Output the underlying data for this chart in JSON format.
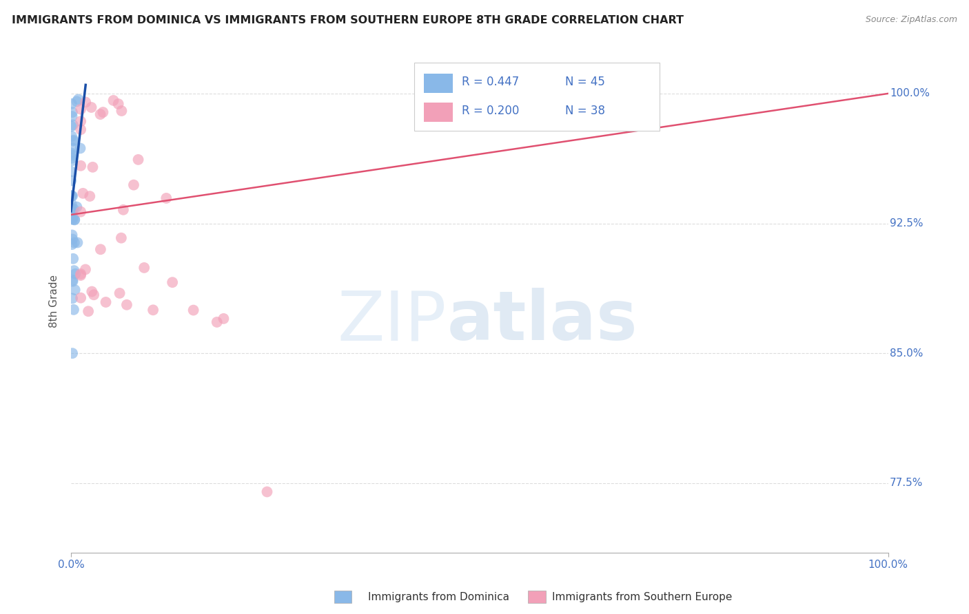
{
  "title": "IMMIGRANTS FROM DOMINICA VS IMMIGRANTS FROM SOUTHERN EUROPE 8TH GRADE CORRELATION CHART",
  "source_text": "Source: ZipAtlas.com",
  "ylabel": "8th Grade",
  "xlim": [
    0.0,
    1.0
  ],
  "ylim": [
    0.735,
    1.025
  ],
  "ytick_labels": [
    "77.5%",
    "85.0%",
    "92.5%",
    "100.0%"
  ],
  "ytick_values": [
    0.775,
    0.85,
    0.925,
    1.0
  ],
  "xtick_labels": [
    "0.0%",
    "100.0%"
  ],
  "legend_box": {
    "R1": "0.447",
    "N1": "45",
    "R2": "0.200",
    "N2": "38"
  },
  "blue_color": "#89B8E8",
  "pink_color": "#F2A0B8",
  "blue_line_color": "#1A4FA8",
  "pink_line_color": "#E05070",
  "grid_color": "#DDDDDD",
  "title_color": "#222222",
  "ylabel_color": "#555555",
  "ytick_color": "#4472C4",
  "xtick_color": "#4472C4",
  "source_color": "#888888",
  "legend_text_color": "#4472C4",
  "bottom_legend_color": "#333333"
}
